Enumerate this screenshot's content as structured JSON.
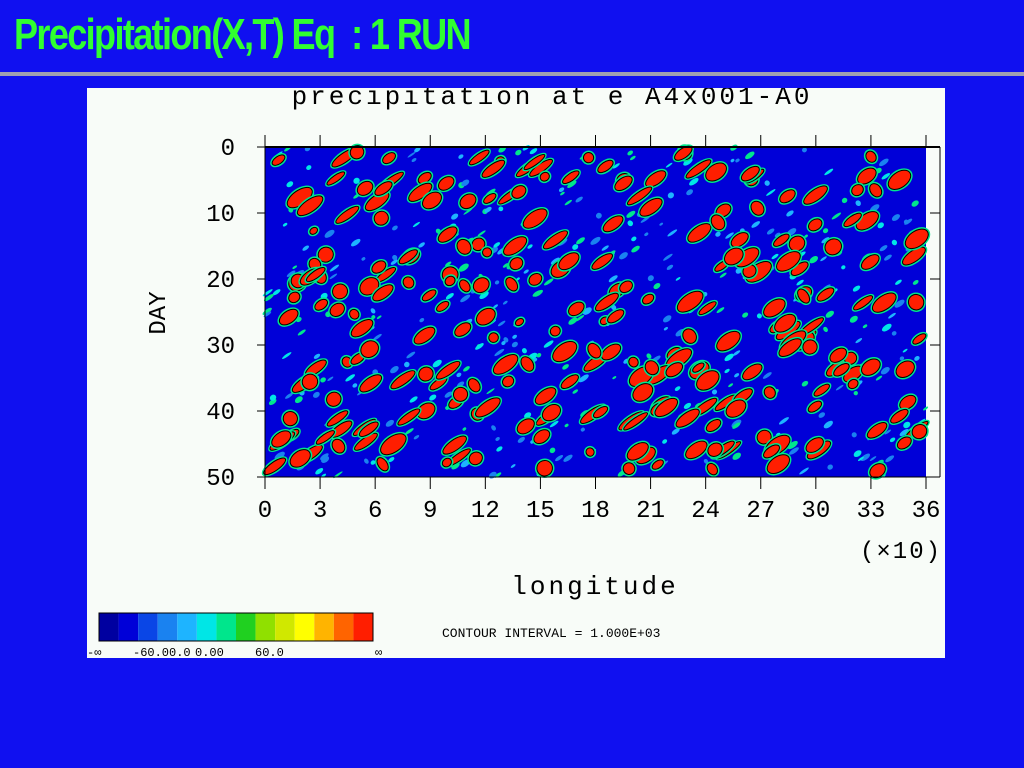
{
  "slide": {
    "title": "Precipitation(X,T) Eq  : 1 RUN"
  },
  "plot": {
    "title": "precipitation at e A4x001-A0",
    "y_label": "DAY",
    "x_label": "longitude",
    "x_scale_note": "(×10)",
    "yticks": [
      0,
      10,
      20,
      30,
      40,
      50
    ],
    "xticks": [
      0,
      3,
      6,
      9,
      12,
      15,
      18,
      21,
      24,
      27,
      30,
      33,
      36
    ],
    "contour_note": "CONTOUR INTERVAL = 1.000E+03",
    "colorbar": {
      "labels": [
        "-∞",
        "-60.0",
        "0.0",
        "0.00",
        "60.0",
        "∞"
      ],
      "colors": [
        "#0000a0",
        "#0000d8",
        "#0a46e6",
        "#1a82f0",
        "#1eb4ff",
        "#00e6e6",
        "#00e68c",
        "#20d020",
        "#90e000",
        "#d0e800",
        "#ffff00",
        "#ffb400",
        "#ff6400",
        "#ff1e00"
      ]
    }
  }
}
